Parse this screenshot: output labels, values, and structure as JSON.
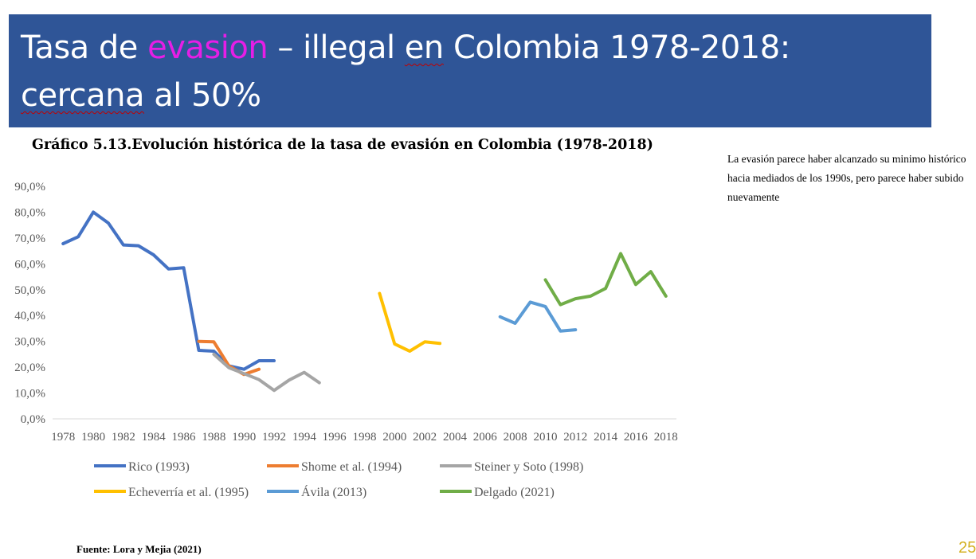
{
  "slide": {
    "title_parts": [
      "Tasa de ",
      "evasion",
      " – illegal ",
      "en",
      " Colombia 1978-2018:",
      "cercana",
      " al 50%"
    ],
    "side_note": "La evasión parece haber alcanzado su minimo histórico hacia mediados de los 1990s, pero parece haber subido nuevamente",
    "source": "Fuente: Lora y Mejia (2021)",
    "page_number": "25"
  },
  "chart_data": {
    "type": "line",
    "title": "Gráfico 5.13.Evolución histórica de la tasa de evasión en Colombia (1978-2018)",
    "xlabel": "",
    "ylabel": "",
    "x_ticks": [
      "1978",
      "1980",
      "1982",
      "1984",
      "1986",
      "1988",
      "1990",
      "1992",
      "1994",
      "1996",
      "1998",
      "2000",
      "2002",
      "2004",
      "2006",
      "2008",
      "2010",
      "2012",
      "2014",
      "2016",
      "2018"
    ],
    "y_ticks": [
      "0,0%",
      "10,0%",
      "20,0%",
      "30,0%",
      "40,0%",
      "50,0%",
      "60,0%",
      "70,0%",
      "80,0%",
      "90,0%"
    ],
    "xlim": [
      1977.3,
      2018.7
    ],
    "ylim": [
      0,
      90
    ],
    "grid": false,
    "legend_position": "bottom",
    "series": [
      {
        "name": "Rico (1993)",
        "color": "#4472c4",
        "x": [
          1978,
          1979,
          1980,
          1981,
          1982,
          1983,
          1984,
          1985,
          1986,
          1987,
          1988,
          1989,
          1990,
          1991,
          1992
        ],
        "values": [
          67.8,
          70.5,
          80.0,
          75.8,
          67.3,
          67.0,
          63.5,
          58.0,
          58.5,
          26.5,
          26.2,
          20.5,
          19.2,
          22.5,
          22.5
        ]
      },
      {
        "name": "Shome et al. (1994)",
        "color": "#ed7d31",
        "x": [
          1987,
          1988,
          1989,
          1990,
          1991
        ],
        "values": [
          30.0,
          29.8,
          20.5,
          17.2,
          19.2
        ]
      },
      {
        "name": "Steiner y Soto (1998)",
        "color": "#a5a5a5",
        "x": [
          1988,
          1989,
          1990,
          1991,
          1992,
          1993,
          1994,
          1995
        ],
        "values": [
          25.0,
          19.8,
          17.5,
          15.2,
          11.0,
          15.0,
          18.0,
          14.0
        ]
      },
      {
        "name": "Echeverría et al. (1995)",
        "color": "#ffc000",
        "x": [
          1999,
          2000,
          2001,
          2002,
          2003
        ],
        "values": [
          48.5,
          29.0,
          26.2,
          29.8,
          29.2
        ]
      },
      {
        "name": "Ávila (2013)",
        "color": "#5b9bd5",
        "x": [
          2007,
          2008,
          2009,
          2010,
          2011,
          2012
        ],
        "values": [
          39.5,
          37.0,
          45.2,
          43.5,
          34.0,
          34.5
        ]
      },
      {
        "name": "Delgado (2021)",
        "color": "#70ad47",
        "x": [
          2010,
          2011,
          2012,
          2013,
          2014,
          2015,
          2016,
          2017,
          2018
        ],
        "values": [
          53.8,
          44.2,
          46.5,
          47.5,
          50.5,
          64.0,
          52.0,
          57.0,
          47.5
        ]
      }
    ]
  }
}
